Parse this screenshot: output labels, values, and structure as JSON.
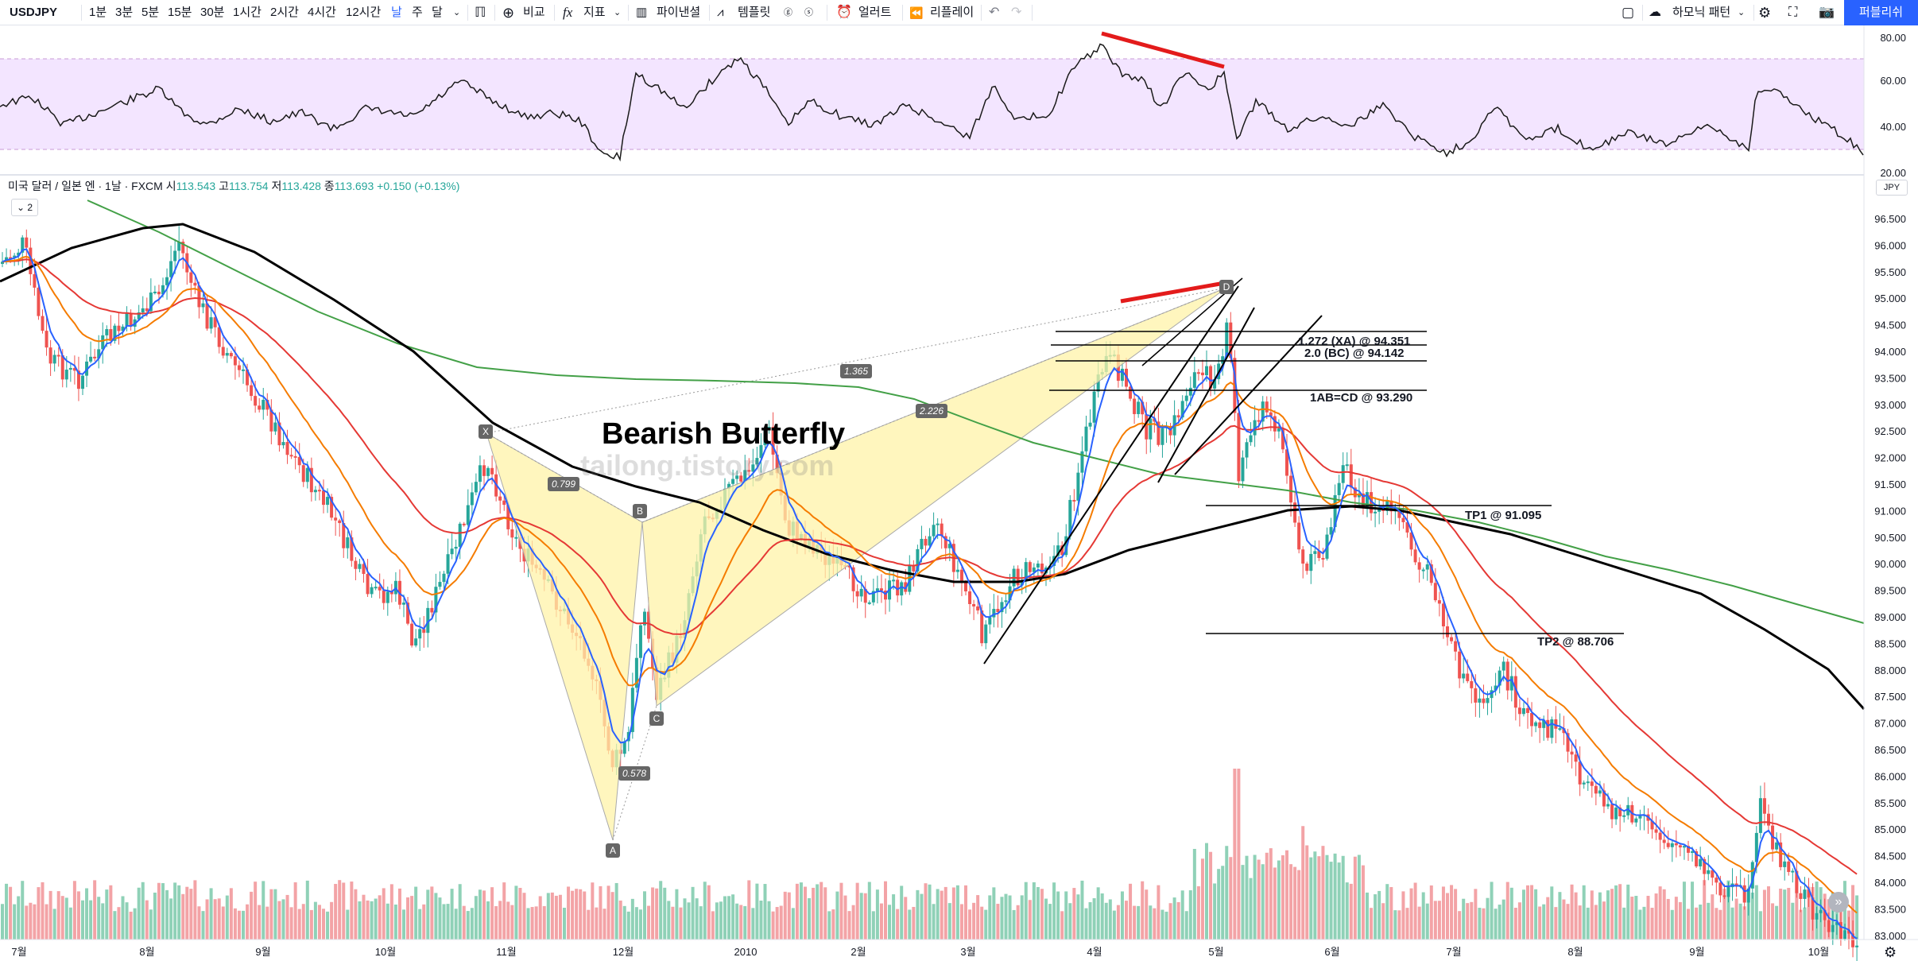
{
  "toolbar": {
    "symbol": "USDJPY",
    "intervals": [
      "1분",
      "3분",
      "5분",
      "15분",
      "30분",
      "1시간",
      "2시간",
      "4시간",
      "12시간",
      "날",
      "주",
      "달"
    ],
    "active_interval": "날",
    "compare_label": "비교",
    "indicators_label": "지표",
    "financials_label": "파이낸셜",
    "templates_label": "템플릿",
    "alerts_label": "얼러트",
    "replay_label": "리플레이",
    "harmonic_label": "하모닉 패턴",
    "publish_label": "퍼블리쉬",
    "undo_icon": "undo-icon",
    "redo_icon": "redo-icon"
  },
  "legend": {
    "title": "미국 달러 / 일본 엔 · 1날 · FXCM",
    "o_label": "시",
    "o_value": "113.543",
    "h_label": "고",
    "h_value": "113.754",
    "l_label": "저",
    "l_value": "113.428",
    "c_label": "종",
    "c_value": "113.693",
    "change": "+0.150 (+0.13%)",
    "indicator_count": "2"
  },
  "currency_badge": "JPY",
  "rsi_axis": [
    "80.00",
    "60.00",
    "40.00",
    "20.00"
  ],
  "price_axis": [
    "96.500",
    "96.000",
    "95.500",
    "95.000",
    "94.500",
    "94.000",
    "93.500",
    "93.000",
    "92.500",
    "92.000",
    "91.500",
    "91.000",
    "90.500",
    "90.000",
    "89.500",
    "89.000",
    "88.500",
    "88.000",
    "87.500",
    "87.000",
    "86.500",
    "86.000",
    "85.500",
    "85.000",
    "84.500",
    "84.000",
    "83.500",
    "83.000"
  ],
  "time_axis": [
    "7월",
    "8월",
    "9월",
    "10월",
    "11월",
    "12월",
    "2010",
    "2월",
    "3월",
    "4월",
    "5월",
    "6월",
    "7월",
    "8월",
    "9월",
    "10월"
  ],
  "annotations": {
    "pattern_title": "Bearish Butterfly",
    "watermark": "tailong.tistory.com",
    "points": [
      "X",
      "A",
      "B",
      "C",
      "D"
    ],
    "ratios": {
      "xb": "0.799",
      "ac": "0.578",
      "xd": "1.365",
      "bd": "2.226"
    },
    "levels": [
      {
        "label": "1.272 (XA) @ 94.351"
      },
      {
        "label": "2.0 (BC) @ 94.142"
      },
      {
        "label": "1AB=CD @ 93.290"
      },
      {
        "label": "TP1 @ 91.095"
      },
      {
        "label": "TP2 @ 88.706"
      }
    ]
  },
  "colors": {
    "up": "#26a69a",
    "down": "#ef5350",
    "up_vol": "#8fd1b7",
    "down_vol": "#f3a3a6",
    "ma_blue": "#2962ff",
    "ma_orange": "#f57c00",
    "ma_red": "#e53935",
    "ma_green": "#43a047",
    "ma_black": "#000000",
    "rsi_band": "#f3e5ff",
    "rsi_line": "#1a1a1a",
    "pattern_fill": "#fff3a8"
  }
}
